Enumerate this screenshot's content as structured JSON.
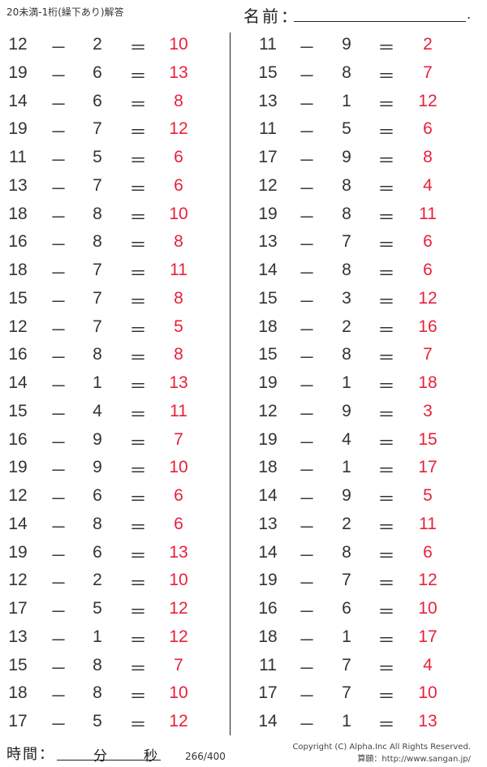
{
  "header": {
    "title": "20未満-1桁(繰下あり)解答",
    "name_label": "名前：",
    "name_end": "."
  },
  "operators": {
    "minus": "－",
    "equals": "＝"
  },
  "left": [
    [
      "12",
      "2",
      "10"
    ],
    [
      "19",
      "6",
      "13"
    ],
    [
      "14",
      "6",
      "8"
    ],
    [
      "19",
      "7",
      "12"
    ],
    [
      "11",
      "5",
      "6"
    ],
    [
      "13",
      "7",
      "6"
    ],
    [
      "18",
      "8",
      "10"
    ],
    [
      "16",
      "8",
      "8"
    ],
    [
      "18",
      "7",
      "11"
    ],
    [
      "15",
      "7",
      "8"
    ],
    [
      "12",
      "7",
      "5"
    ],
    [
      "16",
      "8",
      "8"
    ],
    [
      "14",
      "1",
      "13"
    ],
    [
      "15",
      "4",
      "11"
    ],
    [
      "16",
      "9",
      "7"
    ],
    [
      "19",
      "9",
      "10"
    ],
    [
      "12",
      "6",
      "6"
    ],
    [
      "14",
      "8",
      "6"
    ],
    [
      "19",
      "6",
      "13"
    ],
    [
      "12",
      "2",
      "10"
    ],
    [
      "17",
      "5",
      "12"
    ],
    [
      "13",
      "1",
      "12"
    ],
    [
      "15",
      "8",
      "7"
    ],
    [
      "18",
      "8",
      "10"
    ],
    [
      "17",
      "5",
      "12"
    ]
  ],
  "right": [
    [
      "11",
      "9",
      "2"
    ],
    [
      "15",
      "8",
      "7"
    ],
    [
      "13",
      "1",
      "12"
    ],
    [
      "11",
      "5",
      "6"
    ],
    [
      "17",
      "9",
      "8"
    ],
    [
      "12",
      "8",
      "4"
    ],
    [
      "19",
      "8",
      "11"
    ],
    [
      "13",
      "7",
      "6"
    ],
    [
      "14",
      "8",
      "6"
    ],
    [
      "15",
      "3",
      "12"
    ],
    [
      "18",
      "2",
      "16"
    ],
    [
      "15",
      "8",
      "7"
    ],
    [
      "19",
      "1",
      "18"
    ],
    [
      "12",
      "9",
      "3"
    ],
    [
      "19",
      "4",
      "15"
    ],
    [
      "18",
      "1",
      "17"
    ],
    [
      "14",
      "9",
      "5"
    ],
    [
      "13",
      "2",
      "11"
    ],
    [
      "14",
      "8",
      "6"
    ],
    [
      "19",
      "7",
      "12"
    ],
    [
      "16",
      "6",
      "10"
    ],
    [
      "18",
      "1",
      "17"
    ],
    [
      "11",
      "7",
      "4"
    ],
    [
      "17",
      "7",
      "10"
    ],
    [
      "14",
      "1",
      "13"
    ]
  ],
  "colors": {
    "answer": "#e8203c",
    "text": "#333333"
  },
  "footer": {
    "time_label": "時間：",
    "minutes": "分",
    "seconds": "秒",
    "page": "266/400",
    "copyright": "Copyright (C) Alpha.Inc All Rights Reserved.",
    "site": "算願：http://www.sangan.jp/"
  }
}
